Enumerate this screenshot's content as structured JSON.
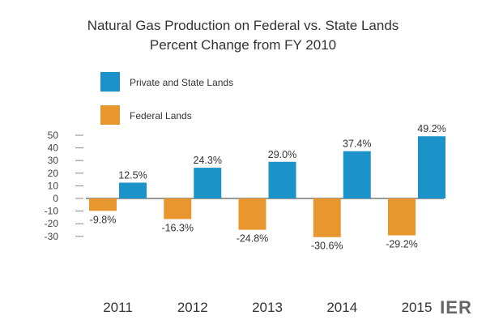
{
  "chart_data": {
    "type": "bar",
    "title": [
      "Natural Gas Production on Federal vs. State Lands",
      "Percent Change from FY 2010"
    ],
    "categories": [
      "2011",
      "2012",
      "2013",
      "2014",
      "2015"
    ],
    "series": [
      {
        "name": "Federal Lands",
        "color": "#E8962E",
        "values": [
          -9.8,
          -16.3,
          -24.8,
          -30.6,
          -29.2
        ],
        "labels": [
          "-9.8%",
          "-16.3%",
          "-24.8%",
          "-30.6%",
          "-29.2%"
        ]
      },
      {
        "name": "Private and State Lands",
        "color": "#1B93C9",
        "values": [
          12.5,
          24.3,
          29.0,
          37.4,
          49.2
        ],
        "labels": [
          "12.5%",
          "24.3%",
          "29.0%",
          "37.4%",
          "49.2%"
        ]
      }
    ],
    "legend_order": [
      "Private and State Lands",
      "Federal Lands"
    ],
    "yticks": [
      "50",
      "40",
      "30",
      "20",
      "10",
      "0",
      "-10",
      "-20",
      "-30"
    ],
    "ytick_values": [
      50,
      40,
      30,
      20,
      10,
      0,
      -10,
      -20,
      -30
    ],
    "ylim": [
      -35,
      52
    ],
    "grid": false,
    "legend_position": "top-left"
  },
  "watermark": "IER"
}
